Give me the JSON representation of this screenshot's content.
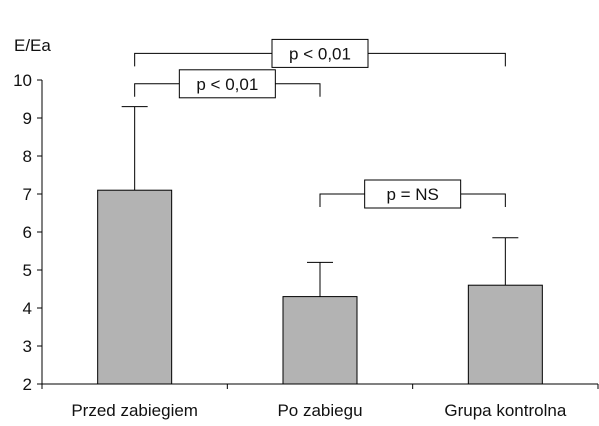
{
  "chart_data": {
    "type": "bar",
    "ylabel": "E/Ea",
    "ylim": [
      2,
      10
    ],
    "yticks": [
      "2",
      "3",
      "4",
      "5",
      "6",
      "7",
      "8",
      "9",
      "10"
    ],
    "categories": [
      "Przed zabiegiem",
      "Po zabiegu",
      "Grupa kontrolna"
    ],
    "values": [
      7.1,
      4.3,
      4.6
    ],
    "error_upper": [
      9.3,
      5.2,
      5.85
    ],
    "bar_color": "#b3b3b3",
    "annotations": [
      {
        "text": "p < 0,01",
        "from": 0,
        "to": 2,
        "level": 10.7
      },
      {
        "text": "p < 0,01",
        "from": 0,
        "to": 1,
        "level": 9.9
      },
      {
        "text": "p = NS",
        "from": 1,
        "to": 2,
        "level": 7.0
      }
    ]
  }
}
